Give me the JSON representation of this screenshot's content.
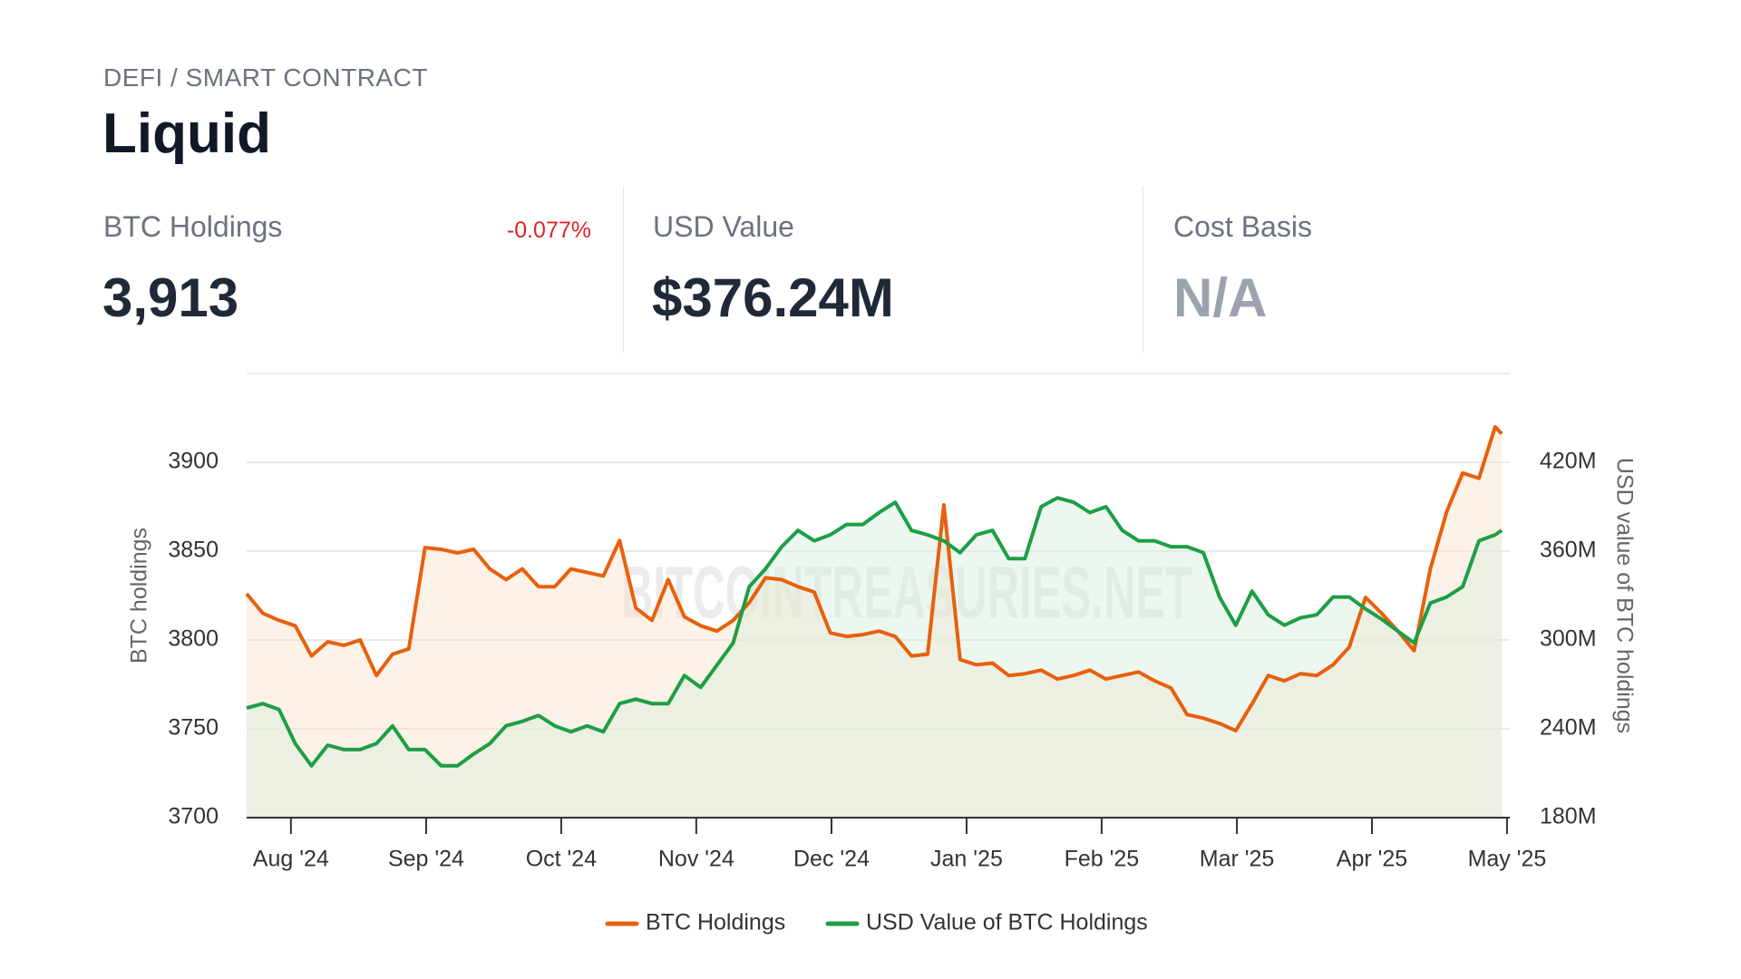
{
  "header": {
    "category": "DEFI / SMART CONTRACT",
    "title": "Liquid"
  },
  "stats": [
    {
      "label": "BTC Holdings",
      "value": "3,913",
      "change": "-0.077%"
    },
    {
      "label": "USD Value",
      "value": "$376.24M"
    },
    {
      "label": "Cost Basis",
      "value": "N/A"
    }
  ],
  "chart_data": {
    "type": "line",
    "watermark": "BITCOINTREASURIES.NET",
    "y_label": "BTC holdings",
    "y2_label": "USD value of BTC holdings",
    "x": [
      2024.556,
      2024.566,
      2024.576,
      2024.586,
      2024.596,
      2024.606,
      2024.616,
      2024.626,
      2024.636,
      2024.646,
      2024.656,
      2024.666,
      2024.676,
      2024.686,
      2024.696,
      2024.706,
      2024.716,
      2024.726,
      2024.736,
      2024.746,
      2024.756,
      2024.766,
      2024.776,
      2024.786,
      2024.796,
      2024.806,
      2024.816,
      2024.826,
      2024.836,
      2024.846,
      2024.856,
      2024.866,
      2024.876,
      2024.886,
      2024.896,
      2024.906,
      2024.916,
      2024.926,
      2024.936,
      2024.946,
      2024.956,
      2024.966,
      2024.976,
      2024.986,
      2024.996,
      2025.006,
      2025.016,
      2025.026,
      2025.036,
      2025.046,
      2025.056,
      2025.066,
      2025.076,
      2025.086,
      2025.096,
      2025.106,
      2025.116,
      2025.126,
      2025.136,
      2025.146,
      2025.156,
      2025.166,
      2025.176,
      2025.186,
      2025.196,
      2025.206,
      2025.216,
      2025.226,
      2025.236,
      2025.246,
      2025.256,
      2025.266,
      2025.276,
      2025.286,
      2025.296,
      2025.306,
      2025.316,
      2025.326,
      2025.33
    ],
    "xlim": [
      2024.556,
      2025.335
    ],
    "xticks": [
      {
        "value": 2024.5833,
        "label": "Aug '24"
      },
      {
        "value": 2024.6667,
        "label": "Sep '24"
      },
      {
        "value": 2024.75,
        "label": "Oct '24"
      },
      {
        "value": 2024.8333,
        "label": "Nov '24"
      },
      {
        "value": 2024.9167,
        "label": "Dec '24"
      },
      {
        "value": 2025.0,
        "label": "Jan '25"
      },
      {
        "value": 2025.0833,
        "label": "Feb '25"
      },
      {
        "value": 2025.1667,
        "label": "Mar '25"
      },
      {
        "value": 2025.25,
        "label": "Apr '25"
      },
      {
        "value": 2025.3333,
        "label": "May '25"
      }
    ],
    "ylim": [
      3700,
      3950
    ],
    "yticks": [
      3700,
      3750,
      3800,
      3850,
      3900
    ],
    "y2lim": [
      180000000,
      480000000
    ],
    "y2ticks": [
      {
        "value": 180000000,
        "label": "180M"
      },
      {
        "value": 240000000,
        "label": "240M"
      },
      {
        "value": 300000000,
        "label": "300M"
      },
      {
        "value": 360000000,
        "label": "360M"
      },
      {
        "value": 420000000,
        "label": "420M"
      }
    ],
    "grid": true,
    "legend": "bottom",
    "series": [
      {
        "name": "BTC Holdings",
        "color": "#e8600c",
        "fill": "#fbe3c9",
        "values": [
          3826,
          3815,
          3811,
          3808,
          3791,
          3799,
          3797,
          3800,
          3780,
          3792,
          3795,
          3852,
          3851,
          3849,
          3851,
          3840,
          3834,
          3840,
          3830,
          3830,
          3840,
          3838,
          3836,
          3856,
          3818,
          3811,
          3834,
          3813,
          3808,
          3805,
          3811,
          3821,
          3835,
          3834,
          3830,
          3827,
          3804,
          3802,
          3803,
          3805,
          3802,
          3791,
          3792,
          3876,
          3789,
          3786,
          3787,
          3780,
          3781,
          3783,
          3778,
          3780,
          3783,
          3778,
          3780,
          3782,
          3777,
          3773,
          3758,
          3756,
          3753,
          3749,
          3764,
          3780,
          3777,
          3781,
          3780,
          3786,
          3796,
          3824,
          3815,
          3805,
          3794,
          3840,
          3872,
          3894,
          3891,
          3920,
          3916
        ]
      },
      {
        "name": "USD Value of BTC Holdings",
        "color": "#1e9e45",
        "fill": "#d4eedd",
        "axis": "y2",
        "values": [
          254000000,
          257000000,
          253000000,
          230000000,
          215000000,
          229000000,
          226000000,
          226000000,
          230000000,
          242000000,
          226000000,
          226000000,
          215000000,
          215000000,
          223000000,
          230000000,
          242000000,
          245000000,
          249000000,
          242000000,
          238000000,
          242000000,
          238000000,
          257000000,
          260000000,
          257000000,
          257000000,
          276000000,
          268000000,
          283000000,
          298000000,
          336000000,
          348000000,
          363000000,
          374000000,
          367000000,
          371000000,
          378000000,
          378000000,
          386000000,
          393000000,
          374000000,
          371000000,
          367000000,
          359000000,
          371000000,
          374000000,
          355000000,
          355000000,
          390000000,
          396000000,
          393000000,
          386000000,
          390000000,
          374000000,
          367000000,
          367000000,
          363000000,
          363000000,
          359000000,
          329000000,
          310000000,
          333000000,
          317000000,
          310000000,
          315000000,
          317000000,
          329000000,
          329000000,
          321000000,
          314000000,
          306000000,
          298000000,
          325000000,
          329000000,
          336000000,
          367000000,
          371000000,
          374000000
        ]
      }
    ]
  }
}
